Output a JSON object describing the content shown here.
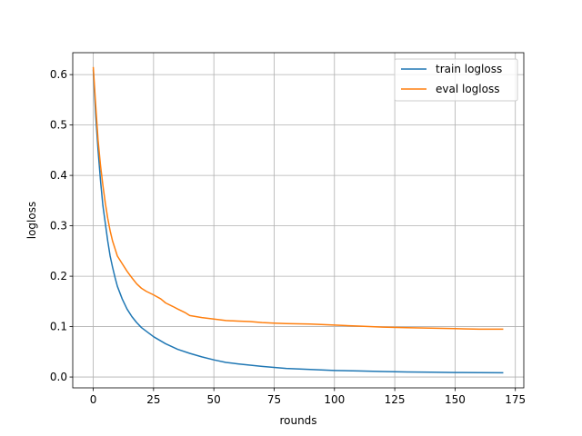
{
  "chart_data": {
    "type": "line",
    "title": "",
    "xlabel": "rounds",
    "ylabel": "logloss",
    "xlim": [
      -8.5,
      178.5
    ],
    "ylim": [
      -0.0215,
      0.6435
    ],
    "xticks": [
      0,
      25,
      50,
      75,
      100,
      125,
      150,
      175
    ],
    "yticks": [
      0.0,
      0.1,
      0.2,
      0.3,
      0.4,
      0.5,
      0.6
    ],
    "grid": true,
    "legend_position": "top-right",
    "series": [
      {
        "name": "train logloss",
        "color": "#1f77b4",
        "x": [
          0,
          1,
          2,
          3,
          4,
          5,
          6,
          7,
          8,
          9,
          10,
          12,
          14,
          16,
          18,
          20,
          25,
          30,
          35,
          40,
          45,
          50,
          55,
          60,
          70,
          80,
          90,
          100,
          110,
          120,
          130,
          140,
          150,
          160,
          170
        ],
        "y": [
          0.61,
          0.52,
          0.45,
          0.39,
          0.34,
          0.305,
          0.27,
          0.24,
          0.218,
          0.198,
          0.18,
          0.155,
          0.135,
          0.12,
          0.108,
          0.098,
          0.08,
          0.066,
          0.055,
          0.047,
          0.04,
          0.034,
          0.029,
          0.026,
          0.021,
          0.017,
          0.015,
          0.013,
          0.012,
          0.011,
          0.01,
          0.0095,
          0.009,
          0.0088,
          0.0085
        ]
      },
      {
        "name": "eval logloss",
        "color": "#ff7f0e",
        "x": [
          0,
          1,
          2,
          3,
          4,
          5,
          6,
          7,
          8,
          9,
          10,
          12,
          14,
          16,
          18,
          20,
          22,
          25,
          28,
          30,
          33,
          35,
          38,
          40,
          45,
          50,
          55,
          60,
          65,
          70,
          75,
          80,
          90,
          100,
          110,
          120,
          130,
          140,
          150,
          160,
          170
        ],
        "y": [
          0.615,
          0.54,
          0.47,
          0.42,
          0.38,
          0.345,
          0.315,
          0.29,
          0.27,
          0.255,
          0.24,
          0.225,
          0.21,
          0.197,
          0.185,
          0.176,
          0.17,
          0.163,
          0.155,
          0.147,
          0.14,
          0.135,
          0.128,
          0.122,
          0.118,
          0.115,
          0.112,
          0.111,
          0.11,
          0.108,
          0.107,
          0.106,
          0.105,
          0.103,
          0.101,
          0.099,
          0.098,
          0.097,
          0.096,
          0.095,
          0.095
        ]
      }
    ]
  }
}
